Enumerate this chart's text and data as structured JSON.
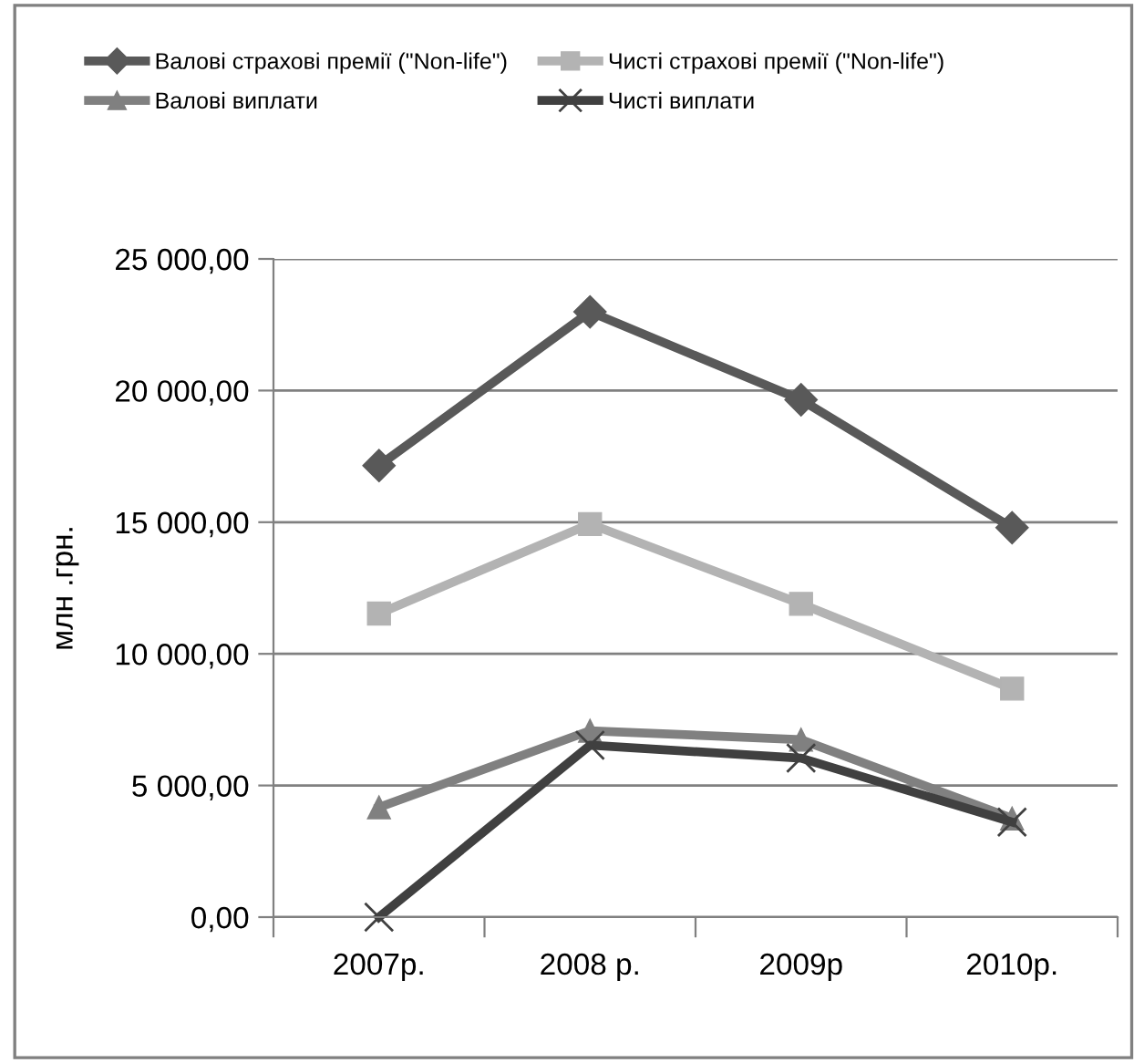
{
  "chart_data": {
    "type": "line",
    "ylabel": "млн .грн.",
    "categories": [
      "2007р.",
      "2008 р.",
      "2009р",
      "2010р."
    ],
    "series": [
      {
        "name": "Валові страхові премії (\"Non-life\")",
        "color": "#595959",
        "marker": "diamond",
        "values": [
          17150,
          22990,
          19650,
          14790
        ]
      },
      {
        "name": "Чисті страхові премії (\"Non-life\")",
        "color": "#b3b3b3",
        "marker": "square",
        "values": [
          11530,
          14930,
          11900,
          8680
        ]
      },
      {
        "name": "Валові виплати",
        "color": "#808080",
        "marker": "triangle",
        "values": [
          4170,
          7080,
          6740,
          3750
        ]
      },
      {
        "name": "Чисті виплати",
        "color": "#404040",
        "marker": "cross",
        "values": [
          0,
          6530,
          6040,
          3610
        ]
      }
    ],
    "ylim": [
      0,
      25000
    ],
    "yticks": [
      {
        "value": 0,
        "label": "0,00"
      },
      {
        "value": 5000,
        "label": "5 000,00"
      },
      {
        "value": 10000,
        "label": "10 000,00"
      },
      {
        "value": 15000,
        "label": "15 000,00"
      },
      {
        "value": 20000,
        "label": "20 000,00"
      },
      {
        "value": 25000,
        "label": "25 000,00"
      }
    ],
    "grid": "y",
    "legend": "top"
  }
}
